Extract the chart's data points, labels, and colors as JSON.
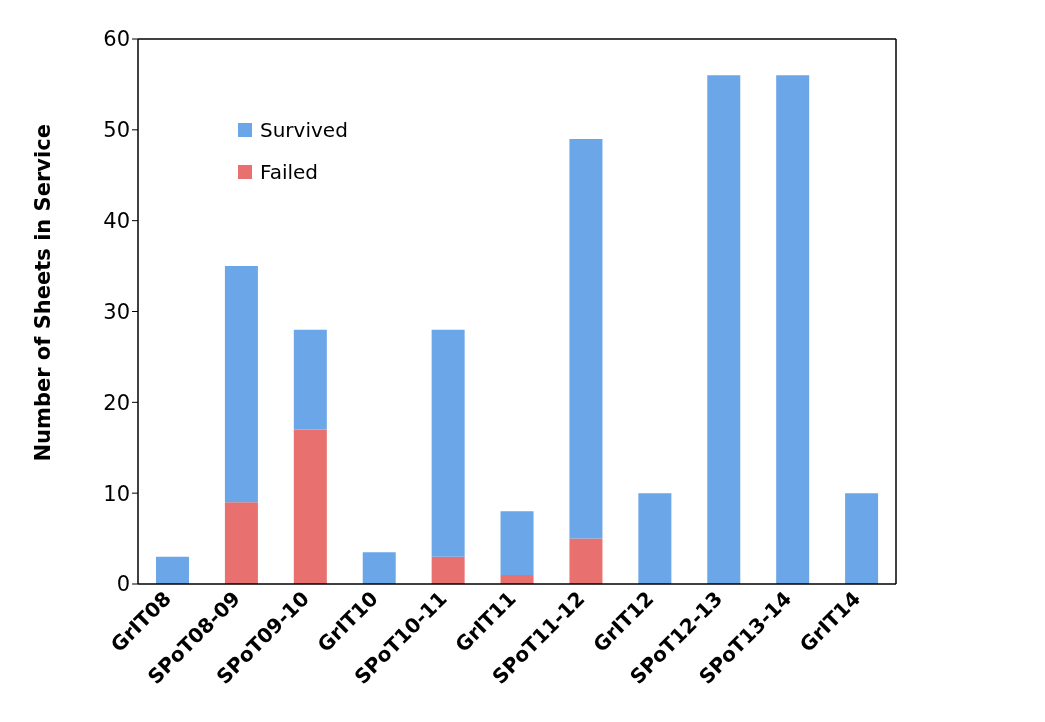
{
  "chart_data": {
    "type": "bar",
    "stacked": true,
    "ylabel": "Number of Sheets in Service",
    "categories": [
      "GrIT08",
      "SPoT08-09",
      "SPoT09-10",
      "GrIT10",
      "SPoT10-11",
      "GrIT11",
      "SPoT11-12",
      "GrIT12",
      "SPoT12-13",
      "SPoT13-14",
      "GrIT14"
    ],
    "series": [
      {
        "name": "Failed",
        "color": "#e8706e",
        "values": [
          0,
          9,
          17,
          0,
          3,
          1,
          5,
          0,
          0,
          0,
          0
        ]
      },
      {
        "name": "Survived",
        "color": "#6aa6e8",
        "values": [
          3,
          26,
          11,
          3.5,
          25,
          7,
          44,
          10,
          56,
          56,
          10
        ]
      }
    ],
    "ylim": [
      0,
      60
    ],
    "yticks": [
      0,
      10,
      20,
      30,
      40,
      50,
      60
    ],
    "grid": false,
    "legend": "top left"
  }
}
